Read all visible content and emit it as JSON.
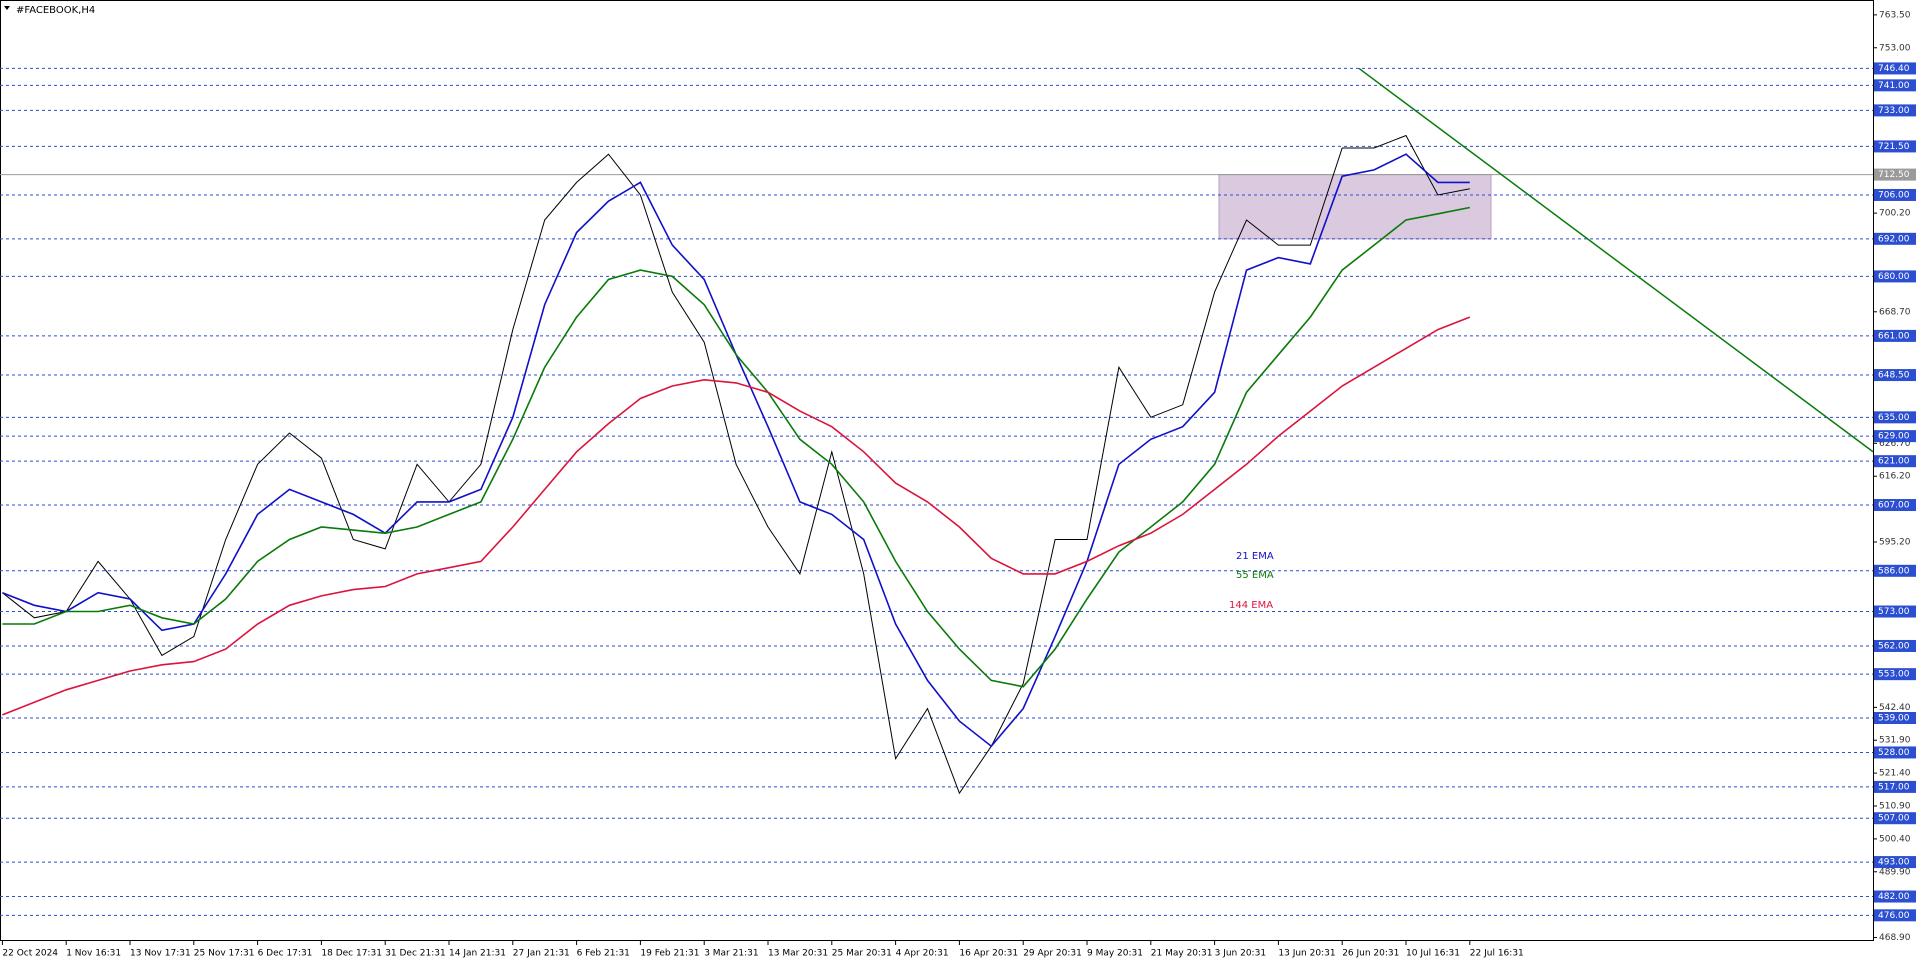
{
  "chart_data": {
    "type": "line",
    "title": "#FACEBOOK,H4",
    "categories": [
      "22 Oct 2024",
      null,
      "1 Nov 16:31",
      null,
      "13 Nov 17:31",
      null,
      "25 Nov 17:31",
      null,
      "6 Dec 17:31",
      null,
      "18 Dec 17:31",
      null,
      "31 Dec 21:31",
      null,
      "14 Jan 21:31",
      null,
      "27 Jan 21:31",
      null,
      "6 Feb 21:31",
      null,
      "19 Feb 21:31",
      null,
      "3 Mar 21:31",
      null,
      "13 Mar 20:31",
      null,
      "25 Mar 20:31",
      null,
      "4 Apr 20:31",
      null,
      "16 Apr 20:31",
      null,
      "29 Apr 20:31",
      null,
      "9 May 20:31",
      null,
      "21 May 20:31",
      null,
      "3 Jun 20:31",
      null,
      "13 Jun 20:31",
      null,
      "26 Jun 20:31",
      null,
      "10 Jul 16:31",
      null,
      "22 Jul 16:31"
    ],
    "series": [
      {
        "name": "#FACEBOOK",
        "color": "#000000",
        "values": [
          579,
          571,
          573,
          589,
          577,
          559,
          565,
          596,
          620,
          630,
          622,
          596,
          593,
          620,
          608,
          620,
          663,
          698,
          710,
          719,
          706,
          675,
          659,
          620,
          600,
          585,
          624,
          585,
          526,
          542,
          515,
          530,
          550,
          596,
          596,
          651,
          635,
          639,
          675,
          698,
          690,
          690,
          721,
          721,
          725,
          706,
          708
        ]
      },
      {
        "name": "21 EMA",
        "color": "#1010c8",
        "values": [
          579,
          575,
          573,
          579,
          577,
          567,
          569,
          585,
          604,
          612,
          608,
          604,
          598,
          608,
          608,
          612,
          635,
          671,
          694,
          704,
          710,
          690,
          679,
          655,
          632,
          608,
          604,
          596,
          569,
          551,
          538,
          530,
          542,
          565,
          589,
          620,
          628,
          632,
          643,
          682,
          686,
          684,
          712,
          714,
          719,
          710,
          710
        ]
      },
      {
        "name": "55 EMA",
        "color": "#0a7a0a",
        "values": [
          569,
          569,
          573,
          573,
          575,
          571,
          569,
          577,
          589,
          596,
          600,
          599,
          598,
          600,
          604,
          608,
          628,
          651,
          667,
          679,
          682,
          680,
          671,
          655,
          643,
          628,
          620,
          608,
          589,
          573,
          561,
          551,
          549,
          561,
          577,
          592,
          600,
          608,
          620,
          643,
          655,
          667,
          682,
          690,
          698,
          700,
          702
        ]
      },
      {
        "name": "144 EMA",
        "color": "#dc143c",
        "values": [
          540,
          544,
          548,
          551,
          554,
          556,
          557,
          561,
          569,
          575,
          578,
          580,
          581,
          585,
          587,
          589,
          600,
          612,
          624,
          633,
          641,
          645,
          647,
          646,
          643,
          637,
          632,
          624,
          614,
          608,
          600,
          590,
          585,
          585,
          589,
          594,
          598,
          604,
          612,
          620,
          629,
          637,
          645,
          651,
          657,
          663,
          667
        ]
      }
    ],
    "ylim": [
      467.8,
      768.25
    ],
    "yticks": [
      {
        "value": 763.5,
        "label": "763.50"
      },
      {
        "value": 753,
        "label": "753.00"
      },
      {
        "value": 700.2,
        "label": "700.20"
      },
      {
        "value": 668.7,
        "label": "668.70"
      },
      {
        "value": 626.7,
        "label": "626.70"
      },
      {
        "value": 616.2,
        "label": "616.20"
      },
      {
        "value": 595.2,
        "label": "595.20"
      },
      {
        "value": 542.4,
        "label": "542.40"
      },
      {
        "value": 531.9,
        "label": "531.90"
      },
      {
        "value": 521.4,
        "label": "521.40"
      },
      {
        "value": 510.9,
        "label": "510.90"
      },
      {
        "value": 500.4,
        "label": "500.40"
      },
      {
        "value": 489.9,
        "label": "489.90"
      },
      {
        "value": 468.9,
        "label": "468.90"
      }
    ],
    "levels": [
      {
        "value": 746.4,
        "label": "746.40"
      },
      {
        "value": 741,
        "label": "741.00"
      },
      {
        "value": 733,
        "label": "733.00"
      },
      {
        "value": 721.5,
        "label": "721.50"
      },
      {
        "value": 706,
        "label": "706.00"
      },
      {
        "value": 692,
        "label": "692.00"
      },
      {
        "value": 680,
        "label": "680.00"
      },
      {
        "value": 661,
        "label": "661.00"
      },
      {
        "value": 648.5,
        "label": "648.50"
      },
      {
        "value": 635,
        "label": "635.00"
      },
      {
        "value": 629,
        "label": "629.00"
      },
      {
        "value": 621,
        "label": "621.00"
      },
      {
        "value": 607,
        "label": "607.00"
      },
      {
        "value": 586,
        "label": "586.00"
      },
      {
        "value": 573,
        "label": "573.00"
      },
      {
        "value": 562,
        "label": "562.00"
      },
      {
        "value": 553,
        "label": "553.00"
      },
      {
        "value": 539,
        "label": "539.00"
      },
      {
        "value": 528,
        "label": "528.00"
      },
      {
        "value": 517,
        "label": "517.00"
      },
      {
        "value": 507,
        "label": "507.00"
      },
      {
        "value": 493,
        "label": "493.00"
      },
      {
        "value": 482,
        "label": "482.00"
      },
      {
        "value": 476,
        "label": "476.00"
      }
    ],
    "current_price": {
      "value": 712.5,
      "label": "712.50"
    },
    "zone": [
      712.5,
      692
    ],
    "trendline": [
      746.4,
      624
    ],
    "level_color": "#2b4fd0"
  }
}
